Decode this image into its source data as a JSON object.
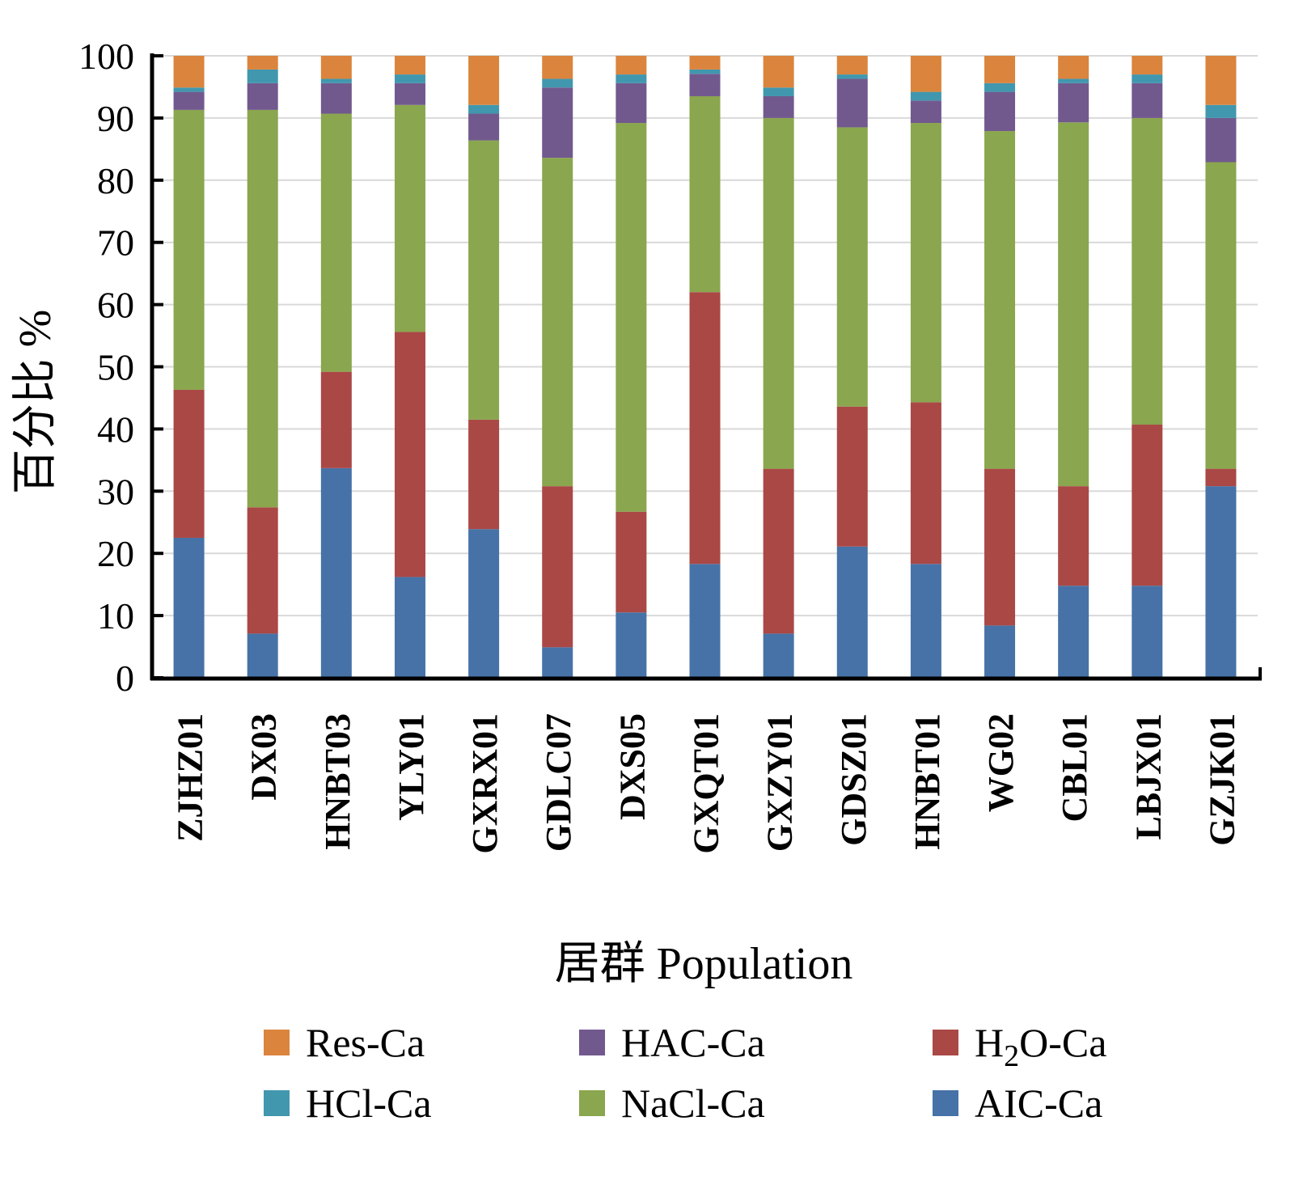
{
  "chart_data": {
    "type": "bar",
    "stacked": true,
    "title": "",
    "xlabel": "居群 Population",
    "ylabel": "百分比 %",
    "ylim": [
      0,
      100
    ],
    "yticks": [
      0,
      10,
      20,
      30,
      40,
      50,
      60,
      70,
      80,
      90,
      100
    ],
    "grid": true,
    "legend_position": "bottom",
    "categories": [
      "ZJHZ01",
      "DX03",
      "HNBT03",
      "YLY01",
      "GXRX01",
      "GDLC07",
      "DXS05",
      "GXQT01",
      "GXZY01",
      "GDSZ01",
      "HNBT01",
      "WG02",
      "CBL01",
      "LBJX01",
      "GZJK01"
    ],
    "series": [
      {
        "name": "AIC-Ca",
        "color": "#4672A7",
        "values": [
          22.5,
          7.1,
          33.7,
          16.2,
          23.9,
          4.9,
          10.5,
          18.3,
          7.1,
          21.1,
          18.3,
          8.4,
          14.8,
          14.8,
          30.8
        ]
      },
      {
        "name": "H2O-Ca",
        "color": "#AA4846",
        "values": [
          23.8,
          20.3,
          15.5,
          39.4,
          17.6,
          25.9,
          16.2,
          43.7,
          26.5,
          22.5,
          26.0,
          25.2,
          16.0,
          25.9,
          2.8
        ]
      },
      {
        "name": "NaCl-Ca",
        "color": "#8AA64E",
        "values": [
          45.0,
          63.9,
          41.5,
          36.5,
          44.9,
          52.8,
          62.5,
          31.5,
          56.4,
          44.9,
          44.9,
          54.3,
          58.5,
          49.3,
          49.3
        ]
      },
      {
        "name": "HAC-Ca",
        "color": "#71598E",
        "values": [
          2.9,
          4.3,
          4.9,
          3.5,
          4.3,
          11.3,
          6.4,
          3.6,
          3.5,
          7.8,
          3.6,
          6.3,
          6.3,
          5.6,
          7.1
        ]
      },
      {
        "name": "HCl-Ca",
        "color": "#4197AE",
        "values": [
          0.7,
          2.2,
          0.7,
          1.4,
          1.4,
          1.4,
          1.4,
          0.7,
          1.4,
          0.7,
          1.4,
          1.4,
          0.7,
          1.4,
          2.1
        ]
      },
      {
        "name": "Res-Ca",
        "color": "#DB843D",
        "values": [
          5.1,
          2.2,
          3.7,
          3.0,
          7.9,
          3.7,
          3.0,
          2.2,
          5.1,
          3.0,
          5.8,
          4.4,
          3.7,
          3.0,
          7.9
        ]
      }
    ],
    "legend": [
      {
        "name": "Res-Ca",
        "color": "#DB843D"
      },
      {
        "name": "HAC-Ca",
        "color": "#71598E"
      },
      {
        "name": "H2O-Ca",
        "color": "#AA4846",
        "subscript": "2"
      },
      {
        "name": "HCl-Ca",
        "color": "#4197AE"
      },
      {
        "name": "NaCl-Ca",
        "color": "#8AA64E"
      },
      {
        "name": "AIC-Ca",
        "color": "#4672A7"
      }
    ]
  }
}
